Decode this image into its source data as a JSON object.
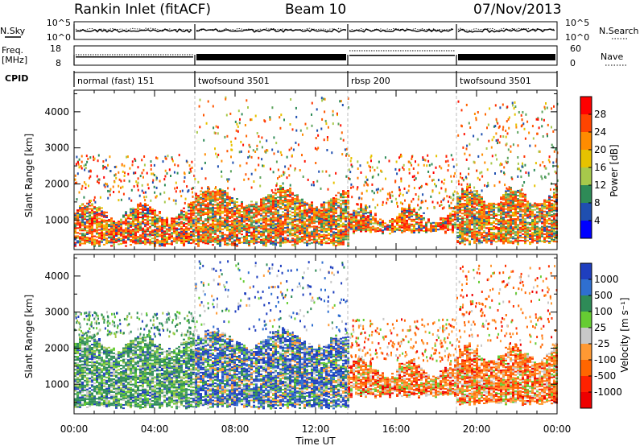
{
  "header": {
    "station": "Rankin Inlet (fitACF)",
    "beam": "Beam 10",
    "date": "07/Nov/2013"
  },
  "status_panel": {
    "nsky_label": "N.Sky",
    "nsearch_label": "N.Search",
    "freq_label_1": "Freq.",
    "freq_label_2": "[MHz]",
    "nave_label": "Nave",
    "cpid_label": "CPID",
    "noise_ticks": [
      "10^5",
      "10^0"
    ],
    "freq_ticks": [
      "18",
      "8"
    ],
    "nave_ticks": [
      "60",
      "0"
    ],
    "cpid_segments": [
      {
        "label": "normal (fast) 151",
        "start_hour": 0.0,
        "end_hour": 6.0
      },
      {
        "label": "twofsound 3501",
        "start_hour": 6.0,
        "end_hour": 13.6
      },
      {
        "label": "rbsp 200",
        "start_hour": 13.6,
        "end_hour": 19.0
      },
      {
        "label": "twofsound 3501",
        "start_hour": 19.0,
        "end_hour": 24.0
      }
    ]
  },
  "chart_data": [
    {
      "type": "heatmap",
      "quantity": "Power",
      "ylabel": "Slant Range [km]",
      "ylim": [
        180,
        4600
      ],
      "y_ticks": [
        "1000",
        "2000",
        "3000",
        "4000"
      ],
      "xlim_hours": [
        0,
        24
      ],
      "colorbar_label": "Power [dB]",
      "colorbar_ticks": [
        "28",
        "24",
        "20",
        "16",
        "12",
        "8",
        "4"
      ],
      "colorbar_colors": [
        "#ff0000",
        "#ff4400",
        "#ff8c00",
        "#e6c200",
        "#a7c94b",
        "#2e8b57",
        "#1f4fb0",
        "#0000ff"
      ],
      "regions": [
        {
          "start_hour": 0.0,
          "end_hour": 6.0,
          "range_min": 250,
          "range_max": 1400,
          "dominant": "strong",
          "sparse_max": 2800
        },
        {
          "start_hour": 6.0,
          "end_hour": 13.6,
          "range_min": 250,
          "range_max": 1800,
          "dominant": "mixed",
          "sparse_max": 4400
        },
        {
          "start_hour": 13.6,
          "end_hour": 19.0,
          "range_min": 600,
          "range_max": 1300,
          "dominant": "strong",
          "sparse_max": 2800
        },
        {
          "start_hour": 19.0,
          "end_hour": 24.0,
          "range_min": 300,
          "range_max": 1800,
          "dominant": "mixed",
          "sparse_max": 4300
        }
      ]
    },
    {
      "type": "heatmap",
      "quantity": "Velocity",
      "ylabel": "Slant Range [km]",
      "xlabel": "Time UT",
      "ylim": [
        180,
        4600
      ],
      "y_ticks": [
        "1000",
        "2000",
        "3000",
        "4000"
      ],
      "x_ticks": [
        "00:00",
        "04:00",
        "08:00",
        "12:00",
        "16:00",
        "20:00",
        "00:00"
      ],
      "xlim_hours": [
        0,
        24
      ],
      "colorbar_label": "Velocity [m s⁻¹]",
      "colorbar_ticks": [
        "1000",
        "500",
        "100",
        "25",
        "-25",
        "-100",
        "-500",
        "-1000"
      ],
      "colorbar_colors": [
        "#1f3fbf",
        "#2f6fd0",
        "#2e8b57",
        "#66cc33",
        "#c8c8c8",
        "#ff9933",
        "#ff6600",
        "#ff2200",
        "#ee0000"
      ],
      "regions": [
        {
          "start_hour": 0.0,
          "end_hour": 6.0,
          "range_min": 300,
          "range_max": 2300,
          "dominant": "green",
          "sparse_max": 3000
        },
        {
          "start_hour": 6.0,
          "end_hour": 13.6,
          "range_min": 300,
          "range_max": 2400,
          "dominant": "blue",
          "sparse_max": 4400
        },
        {
          "start_hour": 13.6,
          "end_hour": 19.0,
          "range_min": 600,
          "range_max": 1600,
          "dominant": "orange",
          "sparse_max": 2800
        },
        {
          "start_hour": 19.0,
          "end_hour": 24.0,
          "range_min": 400,
          "range_max": 2000,
          "dominant": "orange",
          "sparse_max": 4300
        }
      ]
    }
  ]
}
